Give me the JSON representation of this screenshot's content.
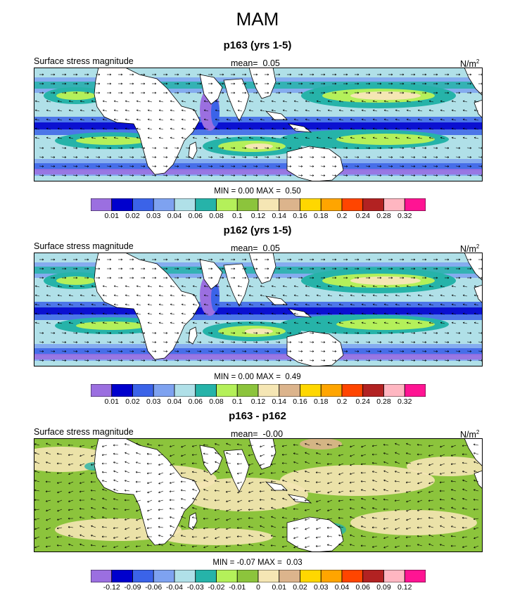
{
  "figure_title": "MAM",
  "panels": [
    {
      "title": "p163 (yrs 1-5)",
      "left_label": "Surface stress magnitude",
      "mean_label": "mean=",
      "mean_value": "0.05",
      "units_base": "N/m",
      "units_exp": "2",
      "min_label": "MIN =",
      "min_value": "0.00",
      "max_label": "MAX =",
      "max_value": "0.50"
    },
    {
      "title": "p162 (yrs 1-5)",
      "left_label": "Surface stress magnitude",
      "mean_label": "mean=",
      "mean_value": "0.05",
      "units_base": "N/m",
      "units_exp": "2",
      "min_label": "MIN =",
      "min_value": "0.00",
      "max_label": "MAX =",
      "max_value": "0.49"
    },
    {
      "title": "p163 - p162",
      "left_label": "Surface stress magnitude",
      "mean_label": "mean=",
      "mean_value": "-0.00",
      "units_base": "N/m",
      "units_exp": "2",
      "min_label": "MIN =",
      "min_value": "-0.07",
      "max_label": "MAX =",
      "max_value": "0.03"
    }
  ],
  "chart_data": [
    {
      "type": "heatmap",
      "title": "p163 (yrs 1-5)",
      "variable": "Surface stress magnitude",
      "units": "N/m^2",
      "mean": 0.05,
      "min": 0.0,
      "max": 0.5,
      "colorbar_levels": [
        "0.01",
        "0.02",
        "0.03",
        "0.04",
        "0.06",
        "0.08",
        "0.1",
        "0.12",
        "0.14",
        "0.16",
        "0.18",
        "0.2",
        "0.24",
        "0.28",
        "0.32"
      ],
      "colorbar_colors": [
        "#9b6fe0",
        "#0000cd",
        "#3b63e8",
        "#7ea2f0",
        "#b0e0e8",
        "#26b3a9",
        "#b4f05a",
        "#8cc43c",
        "#f5e6b4",
        "#dcb48c",
        "#ffd700",
        "#ffa500",
        "#ff4500",
        "#b22222",
        "#ffb6c1",
        "#ff1493"
      ],
      "vectors": "wind stress direction arrows"
    },
    {
      "type": "heatmap",
      "title": "p162 (yrs 1-5)",
      "variable": "Surface stress magnitude",
      "units": "N/m^2",
      "mean": 0.05,
      "min": 0.0,
      "max": 0.49,
      "colorbar_levels": [
        "0.01",
        "0.02",
        "0.03",
        "0.04",
        "0.06",
        "0.08",
        "0.1",
        "0.12",
        "0.14",
        "0.16",
        "0.18",
        "0.2",
        "0.24",
        "0.28",
        "0.32"
      ],
      "colorbar_colors": [
        "#9b6fe0",
        "#0000cd",
        "#3b63e8",
        "#7ea2f0",
        "#b0e0e8",
        "#26b3a9",
        "#b4f05a",
        "#8cc43c",
        "#f5e6b4",
        "#dcb48c",
        "#ffd700",
        "#ffa500",
        "#ff4500",
        "#b22222",
        "#ffb6c1",
        "#ff1493"
      ],
      "vectors": "wind stress direction arrows"
    },
    {
      "type": "heatmap",
      "title": "p163 - p162",
      "variable": "Surface stress magnitude",
      "units": "N/m^2",
      "mean": -0.0,
      "min": -0.07,
      "max": 0.03,
      "colorbar_levels": [
        "-0.12",
        "-0.09",
        "-0.06",
        "-0.04",
        "-0.03",
        "-0.02",
        "-0.01",
        "0",
        "0.01",
        "0.02",
        "0.03",
        "0.04",
        "0.06",
        "0.09",
        "0.12"
      ],
      "colorbar_colors": [
        "#9b6fe0",
        "#0000cd",
        "#3b63e8",
        "#7ea2f0",
        "#b0e0e8",
        "#26b3a9",
        "#b4f05a",
        "#8cc43c",
        "#f5e6b4",
        "#dcb48c",
        "#ffd700",
        "#ffa500",
        "#ff4500",
        "#b22222",
        "#ffb6c1",
        "#ff1493"
      ],
      "vectors": "difference of wind stress arrows"
    }
  ]
}
